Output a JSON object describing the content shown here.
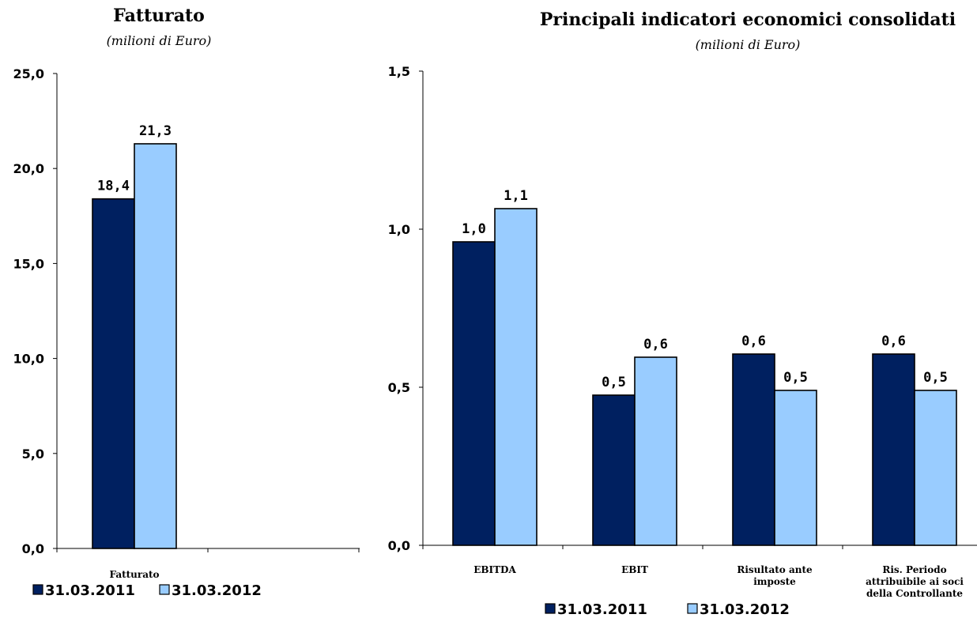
{
  "chart_data": [
    {
      "type": "bar",
      "title": "Fatturato",
      "subtitle": "(milioni di Euro)",
      "categories": [
        "Fatturato",
        ""
      ],
      "series": [
        {
          "name": "31.03.2011",
          "values": [
            18.4,
            null
          ],
          "labels": [
            "18,4",
            ""
          ]
        },
        {
          "name": "31.03.2012",
          "values": [
            21.3,
            null
          ],
          "labels": [
            "21,3",
            ""
          ]
        }
      ],
      "ylim": [
        0,
        25
      ],
      "yticks": [
        0,
        5,
        10,
        15,
        20,
        25
      ],
      "ytick_labels": [
        "0,0",
        "5,0",
        "10,0",
        "15,0",
        "20,0",
        "25,0"
      ],
      "grid": false,
      "legend": "bottom-left",
      "colors": [
        "#002060",
        "#99CCFF"
      ]
    },
    {
      "type": "bar",
      "title": "Principali indicatori economici consolidati",
      "subtitle": "(milioni di Euro)",
      "categories": [
        "EBITDA",
        "EBIT",
        "Risultato ante imposte",
        "Ris. Periodo attribuibile ai soci della Controllante"
      ],
      "category_lines": [
        [
          "EBITDA"
        ],
        [
          "EBIT"
        ],
        [
          "Risultato ante",
          "imposte"
        ],
        [
          "Ris. Periodo",
          "attribuibile ai soci",
          "della Controllante"
        ]
      ],
      "series": [
        {
          "name": "31.03.2011",
          "values": [
            0.96,
            0.475,
            0.605,
            0.605
          ],
          "labels": [
            "1,0",
            "0,5",
            "0,6",
            "0,6"
          ]
        },
        {
          "name": "31.03.2012",
          "values": [
            1.065,
            0.595,
            0.49,
            0.49
          ],
          "labels": [
            "1,1",
            "0,6",
            "0,5",
            "0,5"
          ]
        }
      ],
      "ylim": [
        0,
        1.5
      ],
      "yticks": [
        0,
        0.5,
        1.0,
        1.5
      ],
      "ytick_labels": [
        "0,0",
        "0,5",
        "1,0",
        "1,5"
      ],
      "grid": false,
      "legend": "bottom-center",
      "colors": [
        "#002060",
        "#99CCFF"
      ]
    }
  ]
}
